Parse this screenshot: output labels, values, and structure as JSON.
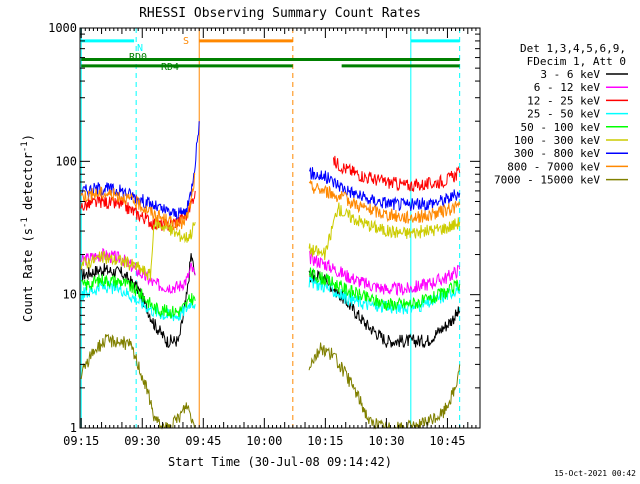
{
  "chart_data": {
    "type": "line",
    "title": "RHESSI Observing Summary Count Rates",
    "xlabel": "Start Time (30-Jul-08 09:14:42)",
    "ylabel_main": "Count Rate (s",
    "ylabel_sup1": "-1",
    "ylabel_mid": " detector",
    "ylabel_sup2": "-1",
    "ylabel_end": ")",
    "timestamp": "15-Oct-2021 00:42",
    "y_scale": "log",
    "ylim": [
      1,
      1000
    ],
    "xlim_minutes": [
      9.0,
      1.5,
      1.5,
      0.5
    ],
    "x_ticks": [
      {
        "t": 915,
        "label": "09:15"
      },
      {
        "t": 930,
        "label": "09:30"
      },
      {
        "t": 945,
        "label": "09:45"
      },
      {
        "t": 1000,
        "label": "10:00"
      },
      {
        "t": 1015,
        "label": "10:15"
      },
      {
        "t": 1030,
        "label": "10:30"
      },
      {
        "t": 1045,
        "label": "10:45"
      }
    ],
    "y_ticks": [
      {
        "v": 1,
        "label": "1"
      },
      {
        "v": 10,
        "label": "10"
      },
      {
        "v": 100,
        "label": "100"
      },
      {
        "v": 1000,
        "label": "1000"
      }
    ],
    "legend_header": [
      "Det 1,3,4,5,6,9,",
      "FDecim 1, Att 0"
    ],
    "legend_position": "right",
    "series": [
      {
        "name": "3 - 6 keV",
        "color": "#000000",
        "segments": [
          [
            [
              915,
              14
            ],
            [
              920,
              15.5
            ],
            [
              925,
              14.5
            ],
            [
              929,
              11
            ],
            [
              933,
              6
            ],
            [
              936,
              4.5
            ],
            [
              939,
              4.5
            ],
            [
              941,
              10
            ],
            [
              942,
              20
            ],
            [
              943,
              14
            ]
          ],
          [
            [
              1011,
              14
            ],
            [
              1015,
              13
            ],
            [
              1020,
              9
            ],
            [
              1025,
              6
            ],
            [
              1030,
              4.5
            ],
            [
              1035,
              4.5
            ],
            [
              1040,
              4.5
            ],
            [
              1045,
              6
            ],
            [
              1048,
              7.5
            ]
          ]
        ]
      },
      {
        "name": "6 - 12 keV",
        "color": "#ff00ff",
        "segments": [
          [
            [
              915,
              18
            ],
            [
              920,
              20
            ],
            [
              925,
              18.5
            ],
            [
              929,
              15
            ],
            [
              933,
              12
            ],
            [
              936,
              11.5
            ],
            [
              939,
              11.5
            ],
            [
              941,
              13
            ],
            [
              942,
              16
            ],
            [
              943,
              14
            ]
          ],
          [
            [
              1011,
              19
            ],
            [
              1015,
              17
            ],
            [
              1020,
              14
            ],
            [
              1025,
              12
            ],
            [
              1030,
              11
            ],
            [
              1035,
              11
            ],
            [
              1040,
              12
            ],
            [
              1045,
              13.5
            ],
            [
              1048,
              15.5
            ]
          ]
        ]
      },
      {
        "name": "12 - 25 keV",
        "color": "#ff0000",
        "segments": [
          [
            [
              915,
              46
            ],
            [
              920,
              50
            ],
            [
              925,
              47
            ],
            [
              929,
              40
            ],
            [
              933,
              34
            ],
            [
              936,
              33
            ],
            [
              939,
              36
            ],
            [
              941,
              40
            ],
            [
              942,
              48
            ],
            [
              943,
              60
            ]
          ],
          [
            [
              1017,
              100
            ],
            [
              1020,
              88
            ],
            [
              1025,
              76
            ],
            [
              1030,
              70
            ],
            [
              1035,
              66
            ],
            [
              1040,
              67
            ],
            [
              1045,
              73
            ],
            [
              1048,
              82
            ]
          ]
        ]
      },
      {
        "name": "25 - 50 keV",
        "color": "#00ffff",
        "segments": [
          [
            [
              915,
              10
            ],
            [
              920,
              11.5
            ],
            [
              925,
              11
            ],
            [
              929,
              9
            ],
            [
              933,
              7.5
            ],
            [
              936,
              7
            ],
            [
              939,
              7
            ],
            [
              941,
              8
            ],
            [
              942,
              9
            ],
            [
              943,
              8.5
            ]
          ],
          [
            [
              1011,
              12.5
            ],
            [
              1015,
              11.5
            ],
            [
              1020,
              9.5
            ],
            [
              1025,
              8.5
            ],
            [
              1030,
              8
            ],
            [
              1035,
              8
            ],
            [
              1040,
              8.5
            ],
            [
              1045,
              10
            ],
            [
              1048,
              11.5
            ]
          ]
        ]
      },
      {
        "name": "50 - 100 keV",
        "color": "#00ff00",
        "segments": [
          [
            [
              915,
              11.5
            ],
            [
              920,
              13
            ],
            [
              925,
              12.5
            ],
            [
              929,
              10.5
            ],
            [
              933,
              8
            ],
            [
              936,
              7.5
            ],
            [
              939,
              7.5
            ],
            [
              941,
              8.5
            ],
            [
              942,
              9.5
            ],
            [
              943,
              9
            ]
          ],
          [
            [
              1011,
              14.5
            ],
            [
              1015,
              13
            ],
            [
              1020,
              11
            ],
            [
              1025,
              9.5
            ],
            [
              1030,
              8.5
            ],
            [
              1035,
              8.5
            ],
            [
              1040,
              9
            ],
            [
              1045,
              10.5
            ],
            [
              1048,
              12
            ]
          ]
        ]
      },
      {
        "name": "100 - 300 keV",
        "color": "#cccc00",
        "segments": [
          [
            [
              915,
              17
            ],
            [
              920,
              19
            ],
            [
              925,
              18
            ],
            [
              929,
              16
            ],
            [
              932,
              14
            ],
            [
              933,
              35
            ],
            [
              936,
              32
            ],
            [
              939,
              28
            ],
            [
              941,
              27
            ],
            [
              942,
              29
            ],
            [
              943,
              35
            ]
          ],
          [
            [
              1011,
              22
            ],
            [
              1015,
              20
            ],
            [
              1018,
              45
            ],
            [
              1020,
              40
            ],
            [
              1025,
              34
            ],
            [
              1030,
              30
            ],
            [
              1035,
              29
            ],
            [
              1040,
              30
            ],
            [
              1045,
              32
            ],
            [
              1048,
              35
            ]
          ]
        ]
      },
      {
        "name": "300 - 800 keV",
        "color": "#0000ff",
        "segments": [
          [
            [
              915,
              60
            ],
            [
              920,
              63
            ],
            [
              925,
              60
            ],
            [
              929,
              53
            ],
            [
              933,
              46
            ],
            [
              936,
              42
            ],
            [
              939,
              40
            ],
            [
              941,
              43
            ],
            [
              942,
              60
            ],
            [
              943,
              100
            ],
            [
              944,
              200
            ]
          ],
          [
            [
              1011,
              82
            ],
            [
              1015,
              76
            ],
            [
              1020,
              62
            ],
            [
              1025,
              52
            ],
            [
              1030,
              49
            ],
            [
              1035,
              47
            ],
            [
              1040,
              48
            ],
            [
              1045,
              52
            ],
            [
              1048,
              58
            ]
          ]
        ]
      },
      {
        "name": "800 - 7000 keV",
        "color": "#ff8800",
        "segments": [
          [
            [
              915,
              55
            ],
            [
              920,
              58
            ],
            [
              925,
              55
            ],
            [
              929,
              48
            ],
            [
              933,
              40
            ],
            [
              936,
              36
            ],
            [
              939,
              33
            ],
            [
              941,
              38
            ],
            [
              942,
              50
            ],
            [
              943,
              80
            ]
          ],
          [
            [
              1011,
              65
            ],
            [
              1015,
              60
            ],
            [
              1020,
              52
            ],
            [
              1025,
              44
            ],
            [
              1030,
              40
            ],
            [
              1035,
              38
            ],
            [
              1040,
              39
            ],
            [
              1045,
              43
            ],
            [
              1048,
              47
            ]
          ]
        ]
      },
      {
        "name": "7000 - 15000 keV",
        "color": "#808000",
        "segments": [
          [
            [
              915,
              2.5
            ],
            [
              918,
              3.8
            ],
            [
              921,
              4.5
            ],
            [
              924,
              4.5
            ],
            [
              927,
              4.2
            ],
            [
              929,
              3
            ],
            [
              931,
              2
            ],
            [
              933,
              1.2
            ],
            [
              935,
              1
            ],
            [
              937,
              1
            ],
            [
              939,
              1.2
            ],
            [
              941,
              1.5
            ],
            [
              943,
              1
            ]
          ],
          [
            [
              1011,
              3
            ],
            [
              1014,
              4
            ],
            [
              1017,
              3.5
            ],
            [
              1020,
              2.5
            ],
            [
              1022,
              2
            ],
            [
              1024,
              1.5
            ],
            [
              1026,
              1.1
            ],
            [
              1030,
              1
            ],
            [
              1035,
              1
            ],
            [
              1040,
              1.1
            ],
            [
              1044,
              1.3
            ],
            [
              1047,
              2
            ],
            [
              1048,
              3
            ]
          ]
        ]
      }
    ],
    "flags": [
      {
        "label": "N",
        "color": "#00ffff",
        "y": 800,
        "segments": [
          [
            915,
            928
          ],
          [
            1036,
            1048
          ]
        ]
      },
      {
        "label": "S",
        "color": "#ff8800",
        "y": 800,
        "segments": [
          [
            944,
            1007
          ]
        ]
      },
      {
        "label": "RD0",
        "color": "#008000",
        "y": 580,
        "segments": [
          [
            915,
            1048
          ]
        ]
      },
      {
        "label": "RD4",
        "color": "#008000",
        "y": 520,
        "segments": [
          [
            915,
            1007
          ],
          [
            1019,
            1048
          ]
        ]
      }
    ],
    "vlines": [
      {
        "t": 915,
        "color": "#00ffff",
        "style": "solid"
      },
      {
        "t": 928.5,
        "color": "#00ffff",
        "style": "dashed"
      },
      {
        "t": 944,
        "color": "#ff8800",
        "style": "solid"
      },
      {
        "t": 1007,
        "color": "#ff8800",
        "style": "dashed"
      },
      {
        "t": 1036,
        "color": "#00ffff",
        "style": "solid"
      },
      {
        "t": 1048,
        "color": "#00ffff",
        "style": "dashed"
      }
    ]
  }
}
